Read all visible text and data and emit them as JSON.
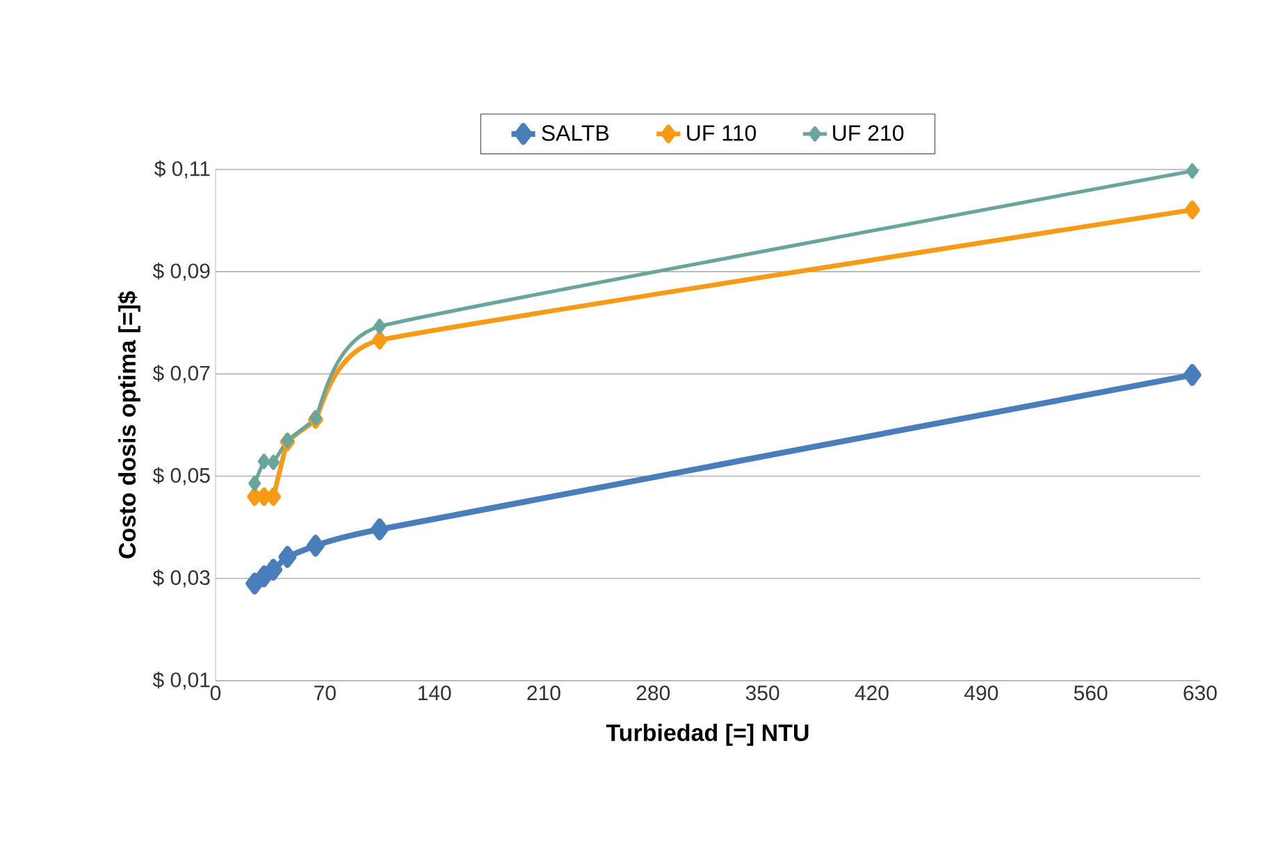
{
  "chart_data": {
    "type": "line",
    "xlabel": "Turbiedad [=] NTU",
    "ylabel": "Costo dosis optima [=]$",
    "x": [
      25,
      31,
      37,
      46,
      64,
      105,
      625
    ],
    "series": [
      {
        "name": "SALTB",
        "color": "#4a7ebb",
        "values": [
          0.029,
          0.0304,
          0.0317,
          0.0342,
          0.0364,
          0.0396,
          0.0698
        ]
      },
      {
        "name": "UF 110",
        "color": "#f79b16",
        "values": [
          0.046,
          0.046,
          0.046,
          0.0567,
          0.0611,
          0.0766,
          0.1021
        ]
      },
      {
        "name": "UF 210",
        "color": "#6aa59c",
        "values": [
          0.0486,
          0.0529,
          0.0527,
          0.057,
          0.0614,
          0.0793,
          0.1097
        ]
      }
    ],
    "xlim": [
      0,
      630
    ],
    "xticks": [
      0,
      70,
      140,
      210,
      280,
      350,
      420,
      490,
      560,
      630
    ],
    "ylim": [
      0.01,
      0.11
    ],
    "yticks": [
      {
        "value": 0.01,
        "label": "$ 0,01"
      },
      {
        "value": 0.03,
        "label": "$ 0,03"
      },
      {
        "value": 0.05,
        "label": "$ 0,05"
      },
      {
        "value": 0.07,
        "label": "$ 0,07"
      },
      {
        "value": 0.09,
        "label": "$ 0,09"
      },
      {
        "value": 0.11,
        "label": "$ 0,11"
      }
    ],
    "grid": "y",
    "legend": "top",
    "marker": "diamond",
    "line_style": "solid"
  }
}
